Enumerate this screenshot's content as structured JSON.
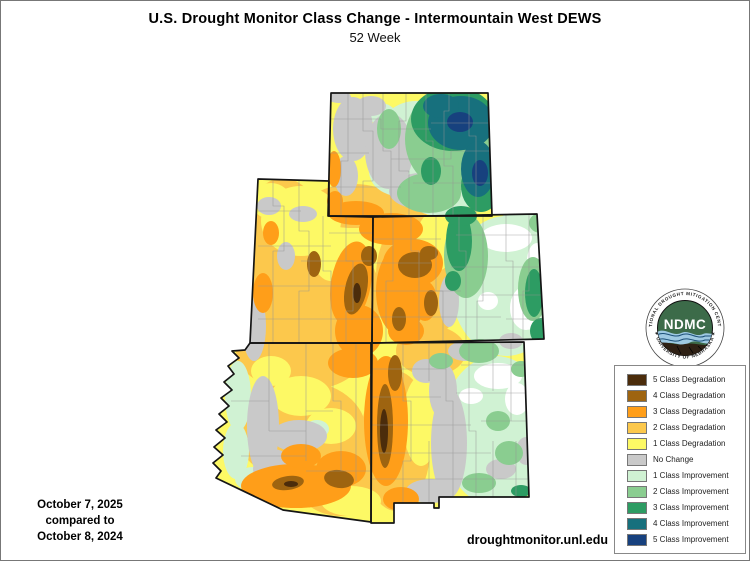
{
  "header": {
    "title": "U.S. Drought Monitor Class Change - Intermountain West DEWS",
    "subtitle": "52 Week"
  },
  "footer": {
    "date_primary": "October 7, 2025",
    "date_connector": "compared to",
    "date_secondary": "October 8, 2024",
    "website": "droughtmonitor.unl.edu"
  },
  "legend": {
    "items": [
      {
        "key": "degradation_5",
        "label": "5 Class Degradation"
      },
      {
        "key": "degradation_4",
        "label": "4 Class Degradation"
      },
      {
        "key": "degradation_3",
        "label": "3 Class Degradation"
      },
      {
        "key": "degradation_2",
        "label": "2 Class Degradation"
      },
      {
        "key": "degradation_1",
        "label": "1 Class Degradation"
      },
      {
        "key": "no_change",
        "label": "No Change"
      },
      {
        "key": "improvement_1",
        "label": "1 Class Improvement"
      },
      {
        "key": "improvement_2",
        "label": "2 Class Improvement"
      },
      {
        "key": "improvement_3",
        "label": "3 Class Improvement"
      },
      {
        "key": "improvement_4",
        "label": "4 Class Improvement"
      },
      {
        "key": "improvement_5",
        "label": "5 Class Improvement"
      }
    ]
  },
  "palette": {
    "degradation_5": "#4b2c0b",
    "degradation_4": "#9e6410",
    "degradation_3": "#ff9e19",
    "degradation_2": "#fcc84c",
    "degradation_1": "#fdf965",
    "no_change": "#c9c9c9",
    "improvement_1": "#d0f2d3",
    "improvement_2": "#8acd90",
    "improvement_3": "#2d9c63",
    "improvement_4": "#17707d",
    "improvement_5": "#17417e",
    "no_data_white": "#ffffff",
    "state_line": "#151515",
    "county_line": "#949494"
  },
  "logo": {
    "center_abbr": "NDMC",
    "arc_top": "NATIONAL DROUGHT MITIGATION CENTER",
    "arc_bottom": "✶ UNIVERSITY OF NEBRASKA ✶",
    "colors": {
      "inner_green": "#3c6b49",
      "water_blue": "#9ec9e2",
      "wave_line": "#1c5078",
      "soil_brown": "#2e2014"
    }
  },
  "map": {
    "state_names": [
      "wyoming",
      "utah",
      "colorado",
      "arizona",
      "new-mexico"
    ]
  }
}
